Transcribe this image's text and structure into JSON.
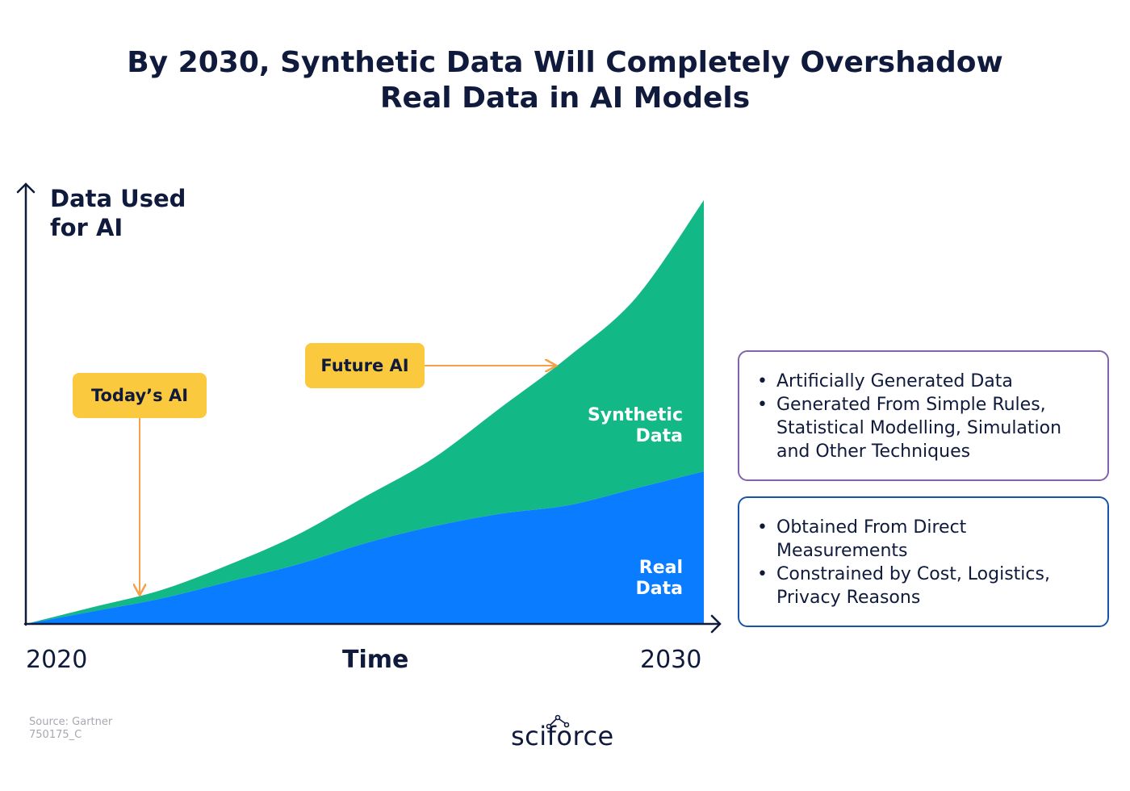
{
  "title_lines": [
    "By 2030, Synthetic Data Will Completely Overshadow",
    "Real Data in AI Models"
  ],
  "colors": {
    "synthetic": "#12b886",
    "real": "#0a7cff",
    "callout": "#fbc93d",
    "arrow": "#f4a14a",
    "axis": "#0f1a3c",
    "synthetic_box_border": "#8562b0",
    "real_box_border": "#1a52a8"
  },
  "callouts": {
    "today": "Today’s AI",
    "future": "Future AI"
  },
  "area_labels": {
    "synthetic": [
      "Synthetic",
      "Data"
    ],
    "real": [
      "Real",
      "Data"
    ]
  },
  "info_boxes": {
    "synthetic": [
      "Artificially Generated Data",
      "Generated From Simple Rules, Statistical Modelling, Simulation and Other Techniques"
    ],
    "real": [
      "Obtained From Direct Measurements",
      "Constrained by Cost, Logistics, Privacy Reasons"
    ]
  },
  "source_lines": [
    "Source: Gartner",
    "750175_C"
  ],
  "brand": "sciforce",
  "chart_data": {
    "type": "area",
    "stacked": true,
    "title": "By 2030, Synthetic Data Will Completely Overshadow Real Data in AI Models",
    "ylabel_lines": [
      "Data Used",
      "for AI"
    ],
    "xlabel": "Time",
    "x_ticks": [
      "2020",
      "2030"
    ],
    "x": [
      2020,
      2021,
      2022,
      2023,
      2024,
      2025,
      2026,
      2027,
      2028,
      2029,
      2030
    ],
    "xlim": [
      2020,
      2030
    ],
    "ylim": [
      0,
      100
    ],
    "series": [
      {
        "name": "Real Data",
        "values": [
          0,
          3,
          6,
          10,
          14,
          19,
          23,
          26,
          28,
          32,
          36
        ]
      },
      {
        "name": "Synthetic Data",
        "values": [
          0,
          1,
          2,
          4,
          7,
          11,
          16,
          25,
          35,
          45,
          64
        ]
      }
    ],
    "grid": false,
    "annotations": [
      {
        "text": "Today’s AI",
        "x": 2021.6
      },
      {
        "text": "Future AI",
        "x": 2028
      }
    ]
  }
}
